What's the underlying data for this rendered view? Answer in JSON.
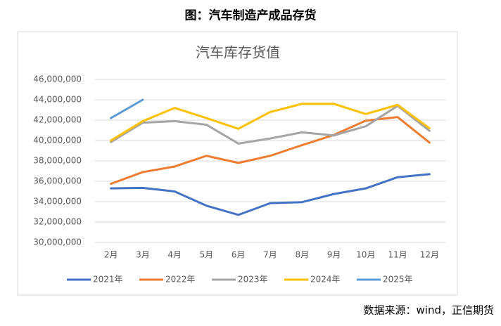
{
  "heading": "图：汽车制造产成品存货",
  "source": "数据来源：wind，正信期货",
  "chart_data": {
    "type": "line",
    "title": "汽车库存货值",
    "categories": [
      "2月",
      "3月",
      "4月",
      "5月",
      "6月",
      "7月",
      "8月",
      "9月",
      "10月",
      "11月",
      "12月"
    ],
    "series": [
      {
        "name": "2021年",
        "color": "#4472c4",
        "values": [
          35300000,
          35350000,
          35000000,
          33600000,
          32700000,
          33850000,
          33950000,
          34750000,
          35300000,
          36400000,
          36700000
        ]
      },
      {
        "name": "2022年",
        "color": "#ed7d31",
        "values": [
          35750000,
          36900000,
          37450000,
          38500000,
          37800000,
          38500000,
          39550000,
          40550000,
          41950000,
          42300000,
          39800000
        ]
      },
      {
        "name": "2023年",
        "color": "#a5a5a5",
        "values": [
          39850000,
          41750000,
          41900000,
          41550000,
          39700000,
          40200000,
          40800000,
          40500000,
          41400000,
          43400000,
          40950000
        ]
      },
      {
        "name": "2024年",
        "color": "#ffc000",
        "values": [
          40000000,
          41900000,
          43200000,
          42200000,
          41150000,
          42800000,
          43600000,
          43600000,
          42600000,
          43500000,
          41200000
        ]
      },
      {
        "name": "2025年",
        "color": "#5b9bd5",
        "values": [
          42200000,
          44000000,
          null,
          null,
          null,
          null,
          null,
          null,
          null,
          null,
          null
        ]
      }
    ],
    "ylim": [
      30000000,
      46000000
    ],
    "yticks": [
      {
        "value": 30000000,
        "label": "30,000,000"
      },
      {
        "value": 32000000,
        "label": "32,000,000"
      },
      {
        "value": 34000000,
        "label": "34,000,000"
      },
      {
        "value": 36000000,
        "label": "36,000,000"
      },
      {
        "value": 38000000,
        "label": "38,000,000"
      },
      {
        "value": 40000000,
        "label": "40,000,000"
      },
      {
        "value": 42000000,
        "label": "42,000,000"
      },
      {
        "value": 44000000,
        "label": "44,000,000"
      },
      {
        "value": 46000000,
        "label": "46,000,000"
      }
    ],
    "grid": true,
    "legend": "bottom"
  }
}
